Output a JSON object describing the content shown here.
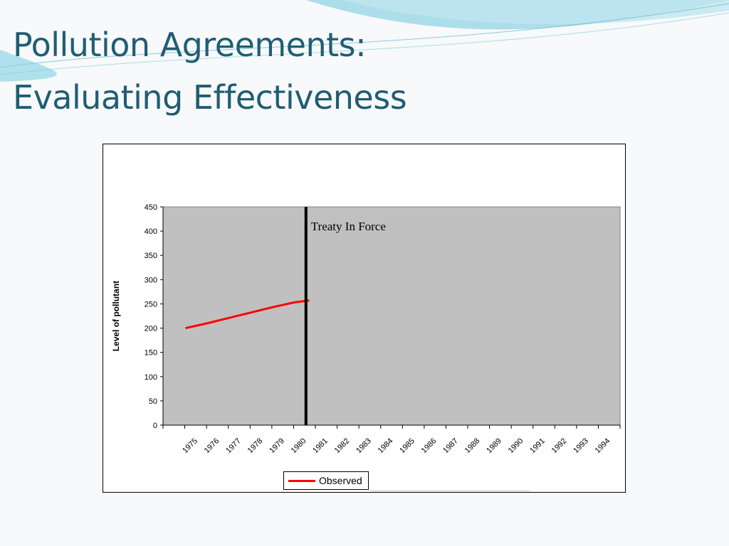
{
  "slide": {
    "title_line1": "Pollution Agreements:",
    "title_line2": "Evaluating Effectiveness"
  },
  "colors": {
    "title": "#1f5d74",
    "plot_area": "#c0c0c0",
    "series_observed": "#ff0000",
    "treaty_line": "#000000"
  },
  "chart_data": {
    "type": "line",
    "title": "",
    "xlabel": "",
    "ylabel": "Level of pollutant",
    "categories": [
      "1975",
      "1976",
      "1977",
      "1978",
      "1979",
      "1980",
      "1981",
      "1982",
      "1983",
      "1984",
      "1985",
      "1986",
      "1987",
      "1988",
      "1989",
      "1990",
      "1991",
      "1992",
      "1993",
      "1994"
    ],
    "ylim": [
      0,
      450
    ],
    "yticks": [
      0,
      50,
      100,
      150,
      200,
      250,
      300,
      350,
      400,
      450
    ],
    "grid": false,
    "series": [
      {
        "name": "Observed",
        "x": [
          1975,
          1976,
          1977,
          1978,
          1979,
          1980,
          1980.7
        ],
        "values": [
          200,
          210,
          221,
          232,
          243,
          253,
          257
        ]
      }
    ],
    "annotations": [
      {
        "type": "vline",
        "x": 1980.55,
        "text": "Treaty In Force"
      }
    ],
    "legend": {
      "position": "bottom",
      "entries": [
        "Observed"
      ]
    }
  }
}
